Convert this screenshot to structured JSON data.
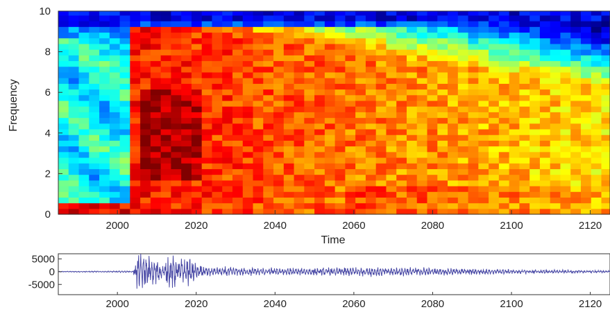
{
  "chart_data": [
    {
      "type": "heatmap",
      "title": "",
      "xlabel": "Time",
      "ylabel": "Frequency",
      "xlim": [
        1985,
        2125
      ],
      "ylim": [
        0,
        10
      ],
      "xticks": [
        2000,
        2020,
        2040,
        2060,
        2080,
        2100,
        2120
      ],
      "yticks": [
        0,
        2,
        4,
        6,
        8,
        10
      ],
      "x_tick_labels": [
        "2000",
        "2020",
        "2040",
        "2060",
        "2080",
        "2100",
        "2120"
      ],
      "y_tick_labels": [
        "0",
        "2",
        "4",
        "6",
        "8",
        "10"
      ],
      "colormap": "jet",
      "grid": false,
      "onset_time": 2003,
      "description_values": {
        "background_level_before_onset": "low (blue/green), strong near 0-0.5 Hz",
        "peak_region": {
          "time": [
            2006,
            2020
          ],
          "frequency": [
            2,
            6
          ]
        },
        "decay": "energy decreases with time, higher frequencies fade first"
      }
    },
    {
      "type": "line",
      "title": "",
      "xlabel": "",
      "ylabel": "",
      "xlim": [
        1985,
        2125
      ],
      "ylim": [
        -9000,
        7000
      ],
      "xticks": [
        2000,
        2020,
        2040,
        2060,
        2080,
        2100,
        2120
      ],
      "yticks": [
        5000,
        0,
        -5000
      ],
      "x_tick_labels": [
        "2000",
        "2020",
        "2040",
        "2060",
        "2080",
        "2100",
        "2120"
      ],
      "y_tick_labels": [
        "5000",
        "0",
        "-5000"
      ],
      "series_color": "#4a4aa6",
      "envelope": [
        {
          "x": 1985,
          "amp": 150
        },
        {
          "x": 2004,
          "amp": 300
        },
        {
          "x": 2005,
          "amp": 6500
        },
        {
          "x": 2009,
          "amp": 5500
        },
        {
          "x": 2012,
          "amp": 2500
        },
        {
          "x": 2013,
          "amp": 6500
        },
        {
          "x": 2018,
          "amp": 5000
        },
        {
          "x": 2022,
          "amp": 2000
        },
        {
          "x": 2040,
          "amp": 1300
        },
        {
          "x": 2065,
          "amp": 1700
        },
        {
          "x": 2085,
          "amp": 1200
        },
        {
          "x": 2105,
          "amp": 700
        },
        {
          "x": 2125,
          "amp": 400
        }
      ]
    }
  ]
}
